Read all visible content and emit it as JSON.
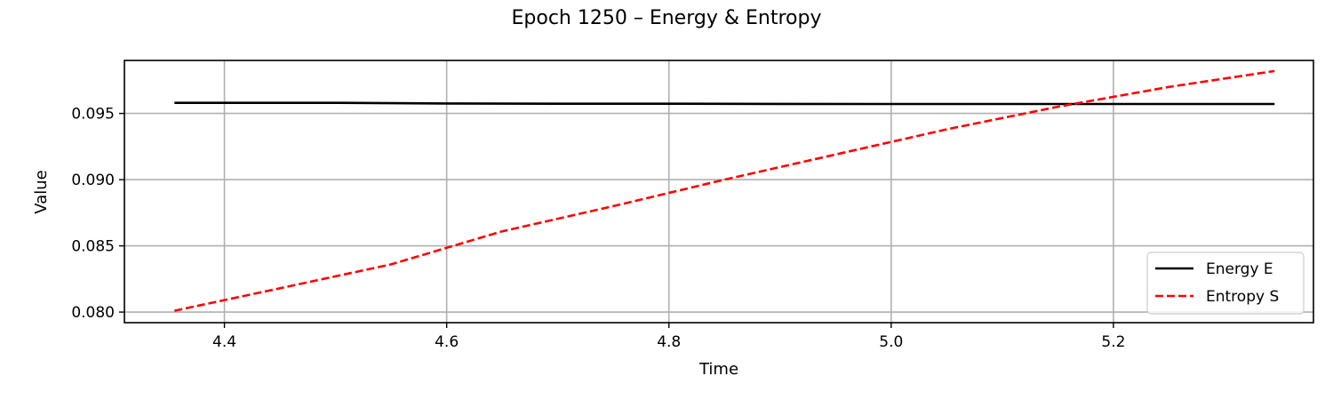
{
  "chart_data": {
    "type": "line",
    "title": "Epoch 1250 – Energy & Entropy",
    "xlabel": "Time",
    "ylabel": "Value",
    "xlim": [
      4.31,
      5.38
    ],
    "ylim": [
      0.0792,
      0.099
    ],
    "xticks": [
      4.4,
      4.6,
      4.8,
      5.0,
      5.2
    ],
    "xtick_labels": [
      "4.4",
      "4.6",
      "4.8",
      "5.0",
      "5.2"
    ],
    "yticks": [
      0.08,
      0.085,
      0.09,
      0.095
    ],
    "ytick_labels": [
      "0.080",
      "0.085",
      "0.090",
      "0.095"
    ],
    "grid": true,
    "legend_position": "lower-right",
    "series": [
      {
        "name": "Energy E",
        "color": "#000000",
        "style": "solid",
        "x": [
          4.355,
          4.5,
          4.6,
          4.7,
          4.8,
          4.9,
          5.0,
          5.1,
          5.2,
          5.345
        ],
        "y": [
          0.0958,
          0.0958,
          0.09575,
          0.09573,
          0.09573,
          0.09572,
          0.09571,
          0.09571,
          0.09571,
          0.09571
        ]
      },
      {
        "name": "Entropy S",
        "color": "#ff0000",
        "style": "dashed",
        "x": [
          4.355,
          4.45,
          4.55,
          4.65,
          4.75,
          4.85,
          4.95,
          5.05,
          5.15,
          5.25,
          5.345
        ],
        "y": [
          0.0801,
          0.0818,
          0.0836,
          0.0861,
          0.088,
          0.09,
          0.0919,
          0.0938,
          0.0955,
          0.097,
          0.0982
        ]
      }
    ]
  }
}
